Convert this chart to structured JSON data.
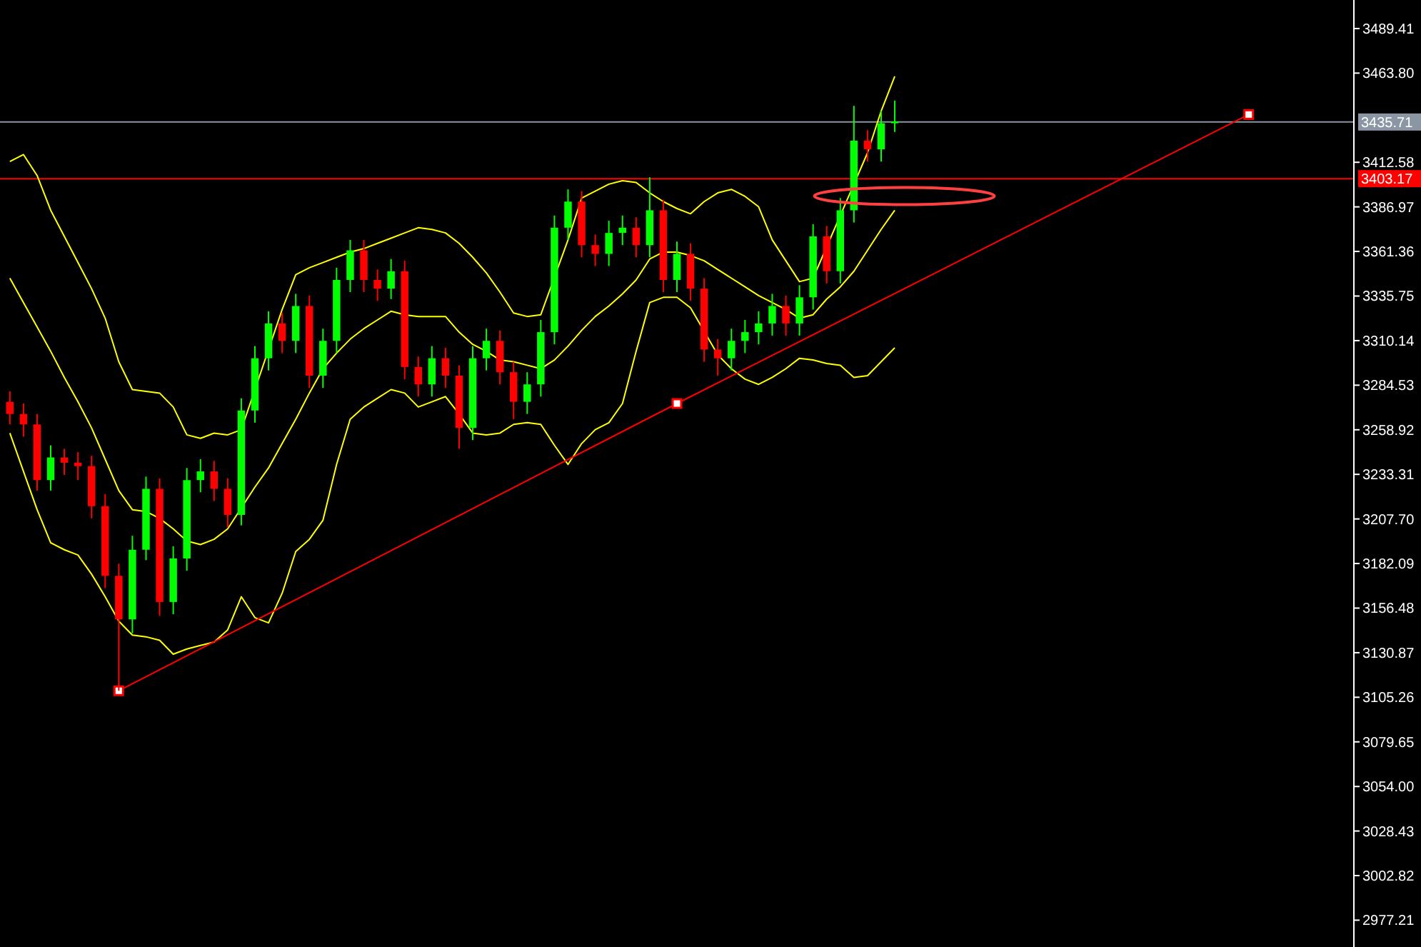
{
  "chart_data": {
    "type": "candlestick",
    "categories": [
      null,
      null,
      null,
      null,
      null,
      null,
      null,
      null,
      null,
      null,
      null,
      null,
      null,
      null,
      null,
      null,
      null,
      null,
      null,
      null,
      null,
      null,
      null,
      null,
      null,
      null,
      null,
      null,
      null,
      null,
      null,
      null,
      null,
      null,
      null,
      null,
      null,
      null,
      null,
      null,
      null,
      null,
      null,
      null,
      null,
      null,
      null,
      null,
      null,
      null,
      null,
      null,
      null,
      null,
      null,
      null,
      null,
      null,
      null,
      null,
      null,
      null,
      null,
      null,
      null,
      null,
      null,
      null,
      null,
      null,
      null,
      null,
      null,
      null,
      null,
      null,
      null,
      null,
      null,
      null,
      null,
      null,
      null,
      null,
      null,
      null,
      null,
      null,
      null,
      null,
      null,
      null,
      null,
      null,
      null,
      null,
      null,
      null,
      null
    ],
    "ohlc": [
      [
        3275,
        3281,
        3262,
        3268
      ],
      [
        3268,
        3274,
        3255,
        3262
      ],
      [
        3262,
        3268,
        3224,
        3230
      ],
      [
        3230,
        3250,
        3224,
        3243
      ],
      [
        3243,
        3248,
        3233,
        3240
      ],
      [
        3240,
        3246,
        3230,
        3238
      ],
      [
        3238,
        3244,
        3208,
        3215
      ],
      [
        3215,
        3222,
        3168,
        3175
      ],
      [
        3175,
        3182,
        3109,
        3150
      ],
      [
        3150,
        3198,
        3142,
        3190
      ],
      [
        3190,
        3232,
        3184,
        3225
      ],
      [
        3225,
        3231,
        3152,
        3160
      ],
      [
        3160,
        3192,
        3153,
        3185
      ],
      [
        3185,
        3237,
        3178,
        3230
      ],
      [
        3230,
        3242,
        3223,
        3235
      ],
      [
        3235,
        3241,
        3218,
        3225
      ],
      [
        3225,
        3231,
        3203,
        3210
      ],
      [
        3210,
        3277,
        3204,
        3270
      ],
      [
        3270,
        3307,
        3263,
        3300
      ],
      [
        3300,
        3327,
        3293,
        3320
      ],
      [
        3320,
        3326,
        3303,
        3310
      ],
      [
        3310,
        3337,
        3303,
        3330
      ],
      [
        3330,
        3336,
        3283,
        3290
      ],
      [
        3290,
        3317,
        3283,
        3310
      ],
      [
        3310,
        3352,
        3303,
        3345
      ],
      [
        3345,
        3368,
        3338,
        3362
      ],
      [
        3362,
        3368,
        3338,
        3345
      ],
      [
        3345,
        3351,
        3333,
        3340
      ],
      [
        3340,
        3357,
        3334,
        3350
      ],
      [
        3350,
        3356,
        3288,
        3295
      ],
      [
        3295,
        3301,
        3278,
        3285
      ],
      [
        3285,
        3307,
        3278,
        3300
      ],
      [
        3300,
        3306,
        3283,
        3290
      ],
      [
        3290,
        3296,
        3248,
        3260
      ],
      [
        3260,
        3307,
        3253,
        3300
      ],
      [
        3300,
        3317,
        3293,
        3310
      ],
      [
        3310,
        3316,
        3285,
        3292
      ],
      [
        3292,
        3298,
        3265,
        3275
      ],
      [
        3275,
        3292,
        3268,
        3285
      ],
      [
        3285,
        3322,
        3278,
        3315
      ],
      [
        3315,
        3382,
        3308,
        3375
      ],
      [
        3375,
        3397,
        3368,
        3390
      ],
      [
        3390,
        3396,
        3358,
        3365
      ],
      [
        3365,
        3371,
        3353,
        3360
      ],
      [
        3360,
        3379,
        3353,
        3372
      ],
      [
        3372,
        3382,
        3365,
        3375
      ],
      [
        3375,
        3381,
        3358,
        3365
      ],
      [
        3365,
        3404,
        3358,
        3385
      ],
      [
        3385,
        3391,
        3338,
        3345
      ],
      [
        3345,
        3367,
        3338,
        3360
      ],
      [
        3360,
        3366,
        3333,
        3340
      ],
      [
        3340,
        3346,
        3298,
        3305
      ],
      [
        3305,
        3311,
        3290,
        3300
      ],
      [
        3300,
        3317,
        3293,
        3310
      ],
      [
        3310,
        3322,
        3303,
        3315
      ],
      [
        3315,
        3327,
        3308,
        3320
      ],
      [
        3320,
        3337,
        3313,
        3330
      ],
      [
        3330,
        3336,
        3313,
        3320
      ],
      [
        3320,
        3342,
        3313,
        3335
      ],
      [
        3335,
        3377,
        3328,
        3370
      ],
      [
        3370,
        3376,
        3343,
        3350
      ],
      [
        3350,
        3392,
        3343,
        3385
      ],
      [
        3385,
        3445,
        3378,
        3425
      ],
      [
        3425,
        3431,
        3413,
        3420
      ],
      [
        3420,
        3442,
        3413,
        3435
      ],
      [
        3435,
        3448,
        3430,
        3436
      ],
      null,
      null,
      null,
      null,
      null,
      null,
      null,
      null,
      null,
      null,
      null,
      null,
      null,
      null,
      null,
      null,
      null,
      null,
      null,
      null,
      null,
      null,
      null,
      null,
      null,
      null,
      null,
      null,
      null,
      null,
      null,
      null,
      null
    ],
    "colors": [
      "#ff0000",
      "#ff0000",
      "#ff0000",
      "#00ff00",
      "#ff0000",
      "#ff0000",
      "#ff0000",
      "#ff0000",
      "#ff0000",
      "#00ff00",
      "#00ff00",
      "#ff0000",
      "#00ff00",
      "#00ff00",
      "#00ff00",
      "#ff0000",
      "#ff0000",
      "#00ff00",
      "#00ff00",
      "#00ff00",
      "#ff0000",
      "#00ff00",
      "#ff0000",
      "#00ff00",
      "#00ff00",
      "#00ff00",
      "#ff0000",
      "#ff0000",
      "#00ff00",
      "#ff0000",
      "#ff0000",
      "#00ff00",
      "#ff0000",
      "#ff0000",
      "#00ff00",
      "#00ff00",
      "#ff0000",
      "#ff0000",
      "#00ff00",
      "#00ff00",
      "#00ff00",
      "#00ff00",
      "#ff0000",
      "#ff0000",
      "#00ff00",
      "#00ff00",
      "#ff0000",
      "#00ff00",
      "#ff0000",
      "#00ff00",
      "#ff0000",
      "#ff0000",
      "#ff0000",
      "#00ff00",
      "#00ff00",
      "#00ff00",
      "#00ff00",
      "#ff0000",
      "#00ff00",
      "#00ff00",
      "#ff0000",
      "#00ff00",
      "#00ff00",
      "#ff0000",
      "#00ff00",
      "#00ff00",
      null,
      null,
      null,
      null,
      null,
      null,
      null,
      null,
      null,
      null,
      null,
      null,
      null,
      null,
      null,
      null,
      null,
      null,
      null,
      null,
      null,
      null,
      null,
      null,
      null,
      null,
      null,
      null,
      null,
      null,
      null,
      null,
      null
    ],
    "series": [
      {
        "type": "line",
        "color": "#ffff00",
        "values": [
          3413,
          3417,
          3405,
          3385,
          3370,
          3355,
          3340,
          3323,
          3298,
          3282,
          3281,
          3280,
          3272,
          3256,
          3254,
          3257,
          3256,
          3259,
          null,
          null,
          3328,
          3348,
          3352,
          3355,
          3358,
          3361,
          3363,
          3366,
          3369,
          3372,
          3375,
          3374,
          3372,
          3366,
          3358,
          3349,
          3338,
          3326,
          3324,
          3325,
          null,
          3368,
          3392,
          3396,
          3400,
          3402,
          3401,
          3395,
          3390,
          3386,
          3383,
          3390,
          3395,
          3397,
          3393,
          3387,
          3368,
          3356,
          3344,
          3346,
          null,
          null,
          null,
          3418,
          3442,
          3462,
          null,
          null,
          null,
          null,
          null,
          null,
          null,
          null,
          null,
          null,
          null,
          null,
          null,
          null,
          null,
          null,
          null,
          null,
          null,
          null,
          null,
          null,
          null,
          null,
          null,
          null,
          null,
          null,
          null,
          null,
          null,
          null,
          null
        ]
      },
      {
        "type": "line",
        "color": "#ffff00",
        "values": [
          3346,
          3332,
          3318,
          3304,
          3289,
          3275,
          3260,
          3242,
          3224,
          3213,
          3212,
          3208,
          3202,
          3195,
          3193,
          3196,
          3202,
          3214,
          3226,
          3237,
          3251,
          3265,
          3280,
          3294,
          3303,
          3311,
          3317,
          3322,
          3327,
          3325,
          3324,
          3324,
          3324,
          3315,
          3308,
          3304,
          3299,
          3298,
          3296,
          3294,
          3299,
          3307,
          3316,
          3324,
          3330,
          3337,
          3345,
          3357,
          3361,
          3361,
          3359,
          3356,
          3351,
          3346,
          3341,
          3336,
          3332,
          3328,
          3323,
          3325,
          3334,
          3341,
          3350,
          3362,
          3374,
          3385,
          null,
          null,
          null,
          null,
          null,
          null,
          null,
          null,
          null,
          null,
          null,
          null,
          null,
          null,
          null,
          null,
          null,
          null,
          null,
          null,
          null,
          null,
          null,
          null,
          null,
          null,
          null,
          null,
          null,
          null,
          null,
          null,
          null
        ]
      },
      {
        "type": "line",
        "color": "#ffff00",
        "values": [
          3257,
          3235,
          3213,
          3194,
          3190,
          3187,
          3176,
          3163,
          3149,
          3141,
          3140,
          3138,
          3130,
          3133,
          3135,
          3137,
          3144,
          3163,
          3151,
          3148,
          3165,
          3189,
          3196,
          3207,
          3239,
          3265,
          3272,
          3277,
          3282,
          3280,
          3272,
          3275,
          3278,
          3268,
          3257,
          3256,
          3257,
          3262,
          3263,
          3262,
          3250,
          3239,
          3251,
          3259,
          3263,
          3274,
          3304,
          3332,
          3335,
          3335,
          3329,
          null,
          3302,
          3294,
          3288,
          3285,
          3289,
          3294,
          3300,
          3299,
          3297,
          3296,
          3289,
          3290,
          3298,
          3306,
          null,
          null,
          null,
          null,
          null,
          null,
          null,
          null,
          null,
          null,
          null,
          null,
          null,
          null,
          null,
          null,
          null,
          null,
          null,
          null,
          null,
          null,
          null,
          null,
          null,
          null,
          null,
          null,
          null,
          null,
          null,
          null,
          null
        ]
      },
      {
        "type": "line",
        "color": "#ff0000",
        "marker": "square",
        "values": [
          null,
          null,
          null,
          null,
          null,
          null,
          null,
          null,
          3109,
          null,
          null,
          null,
          null,
          null,
          null,
          null,
          null,
          null,
          null,
          null,
          null,
          null,
          null,
          null,
          null,
          null,
          null,
          null,
          null,
          null,
          null,
          null,
          null,
          null,
          null,
          null,
          null,
          null,
          null,
          null,
          null,
          null,
          null,
          null,
          null,
          null,
          null,
          null,
          null,
          3274,
          null,
          null,
          null,
          null,
          null,
          null,
          null,
          null,
          null,
          null,
          null,
          null,
          null,
          null,
          null,
          null,
          null,
          null,
          null,
          null,
          null,
          null,
          null,
          null,
          null,
          null,
          null,
          null,
          null,
          null,
          null,
          null,
          null,
          null,
          null,
          null,
          null,
          null,
          null,
          null,
          null,
          3440,
          null,
          null,
          null,
          null,
          null,
          null,
          null
        ]
      }
    ],
    "ylim": [
      2961.8,
      3505.8
    ],
    "yticks": [
      3489.41,
      {
        "value": 3463.8,
        "label": "3463.80"
      },
      3412.58,
      3386.97,
      3361.36,
      3335.75,
      3310.14,
      3284.53,
      3258.92,
      3233.31,
      {
        "value": 3207.7,
        "label": "3207.70"
      },
      3182.09,
      3156.48,
      3130.87,
      3105.26,
      3079.65,
      {
        "value": 3054,
        "label": "3054.00"
      },
      3028.43,
      3002.82,
      2977.21
    ],
    "ref_lines": [
      {
        "axis": "y",
        "value": 3435.71,
        "label": "3435.71",
        "color": "#8a96a3"
      },
      {
        "axis": "y",
        "value": 3403.17,
        "label": "3403.17",
        "color": "#ff0000"
      }
    ],
    "tick_labels": "y",
    "grid": false
  }
}
